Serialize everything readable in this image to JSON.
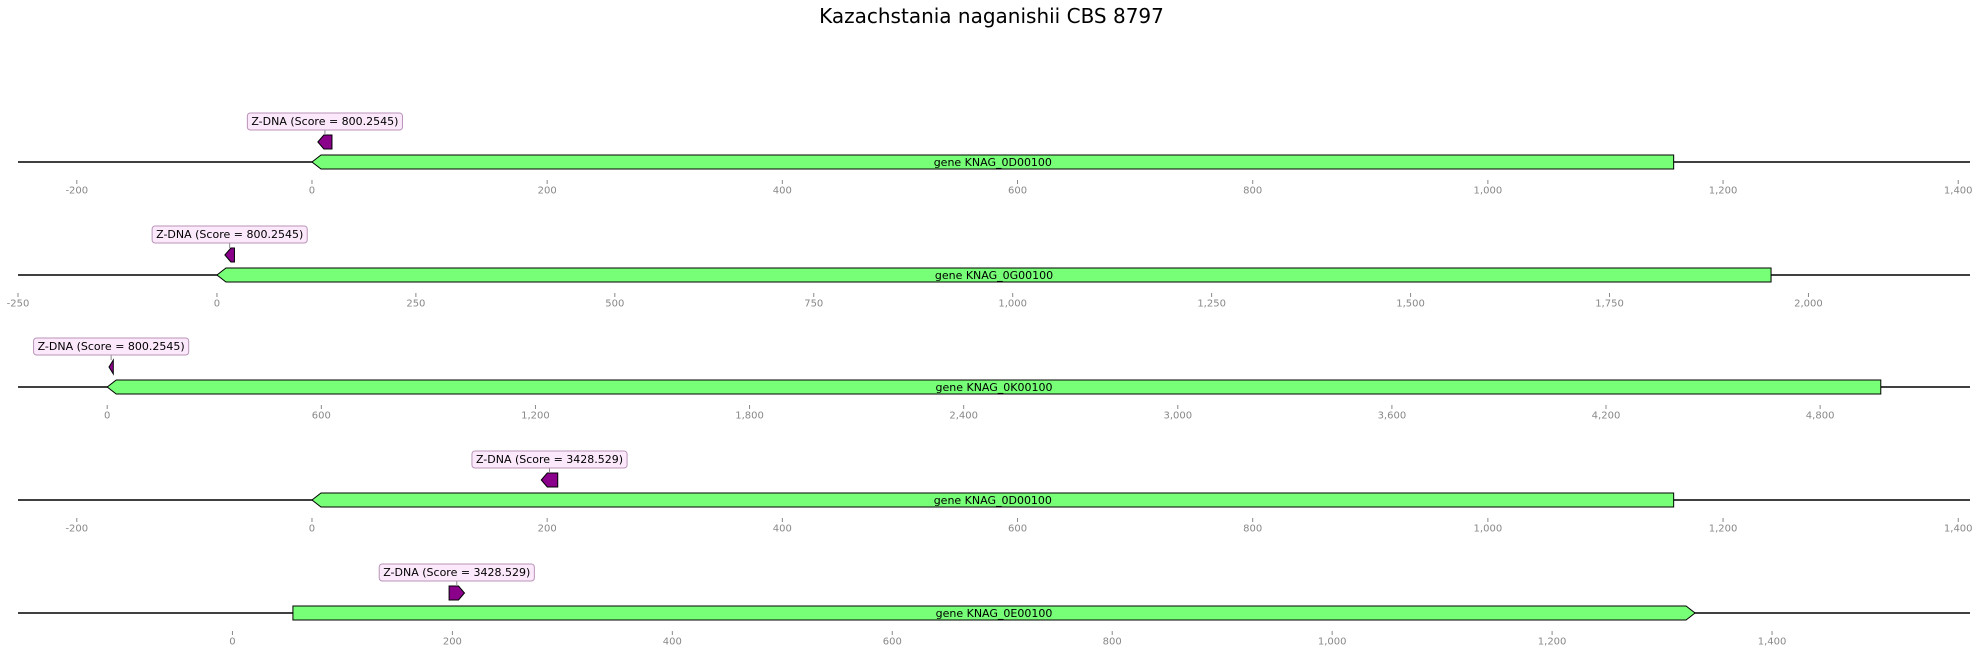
{
  "title": "Kazachstania naganishii CBS 8797",
  "colors": {
    "gene_fill": "#77ff77",
    "gene_stroke": "#000000",
    "zdna_fill": "#8b008b",
    "label_box_fill": "#fbe9fb",
    "label_box_stroke": "#b894b8",
    "tick_color": "#888888"
  },
  "chart_data": [
    {
      "type": "genome-track",
      "xlim": [
        -250,
        1410
      ],
      "ticks": [
        -200,
        0,
        200,
        400,
        600,
        800,
        1000,
        1200,
        1400
      ],
      "tick_labels": [
        "-200",
        "0",
        "200",
        "400",
        "600",
        "800",
        "1,000",
        "1,200",
        "1,400"
      ],
      "gene": {
        "label": "gene KNAG_0D00100",
        "start": 0,
        "end": 1158,
        "strand": -1
      },
      "feature": {
        "label": "Z-DNA (Score = 800.2545)",
        "start": 5,
        "end": 17,
        "strand": -1
      }
    },
    {
      "type": "genome-track",
      "xlim": [
        -250,
        2203
      ],
      "ticks": [
        -250,
        0,
        250,
        500,
        750,
        1000,
        1250,
        1500,
        1750,
        2000
      ],
      "tick_labels": [
        "-250",
        "0",
        "250",
        "500",
        "750",
        "1,000",
        "1,250",
        "1,500",
        "1,750",
        "2,000"
      ],
      "gene": {
        "label": "gene KNAG_0G00100",
        "start": 0,
        "end": 1953,
        "strand": -1
      },
      "feature": {
        "label": "Z-DNA (Score = 800.2545)",
        "start": 10,
        "end": 22,
        "strand": -1
      }
    },
    {
      "type": "genome-track",
      "xlim": [
        -250,
        5220
      ],
      "ticks": [
        0,
        600,
        1200,
        1800,
        2400,
        3000,
        3600,
        4200,
        4800
      ],
      "tick_labels": [
        "0",
        "600",
        "1,200",
        "1,800",
        "2,400",
        "3,000",
        "3,600",
        "4,200",
        "4,800"
      ],
      "gene": {
        "label": "gene KNAG_0K00100",
        "start": 0,
        "end": 4970,
        "strand": -1
      },
      "feature": {
        "label": "Z-DNA (Score = 800.2545)",
        "start": 5,
        "end": 17,
        "strand": -1
      }
    },
    {
      "type": "genome-track",
      "xlim": [
        -250,
        1410
      ],
      "ticks": [
        -200,
        0,
        200,
        400,
        600,
        800,
        1000,
        1200,
        1400
      ],
      "tick_labels": [
        "-200",
        "0",
        "200",
        "400",
        "600",
        "800",
        "1,000",
        "1,200",
        "1,400"
      ],
      "gene": {
        "label": "gene KNAG_0D00100",
        "start": 0,
        "end": 1158,
        "strand": -1
      },
      "feature": {
        "label": "Z-DNA (Score = 3428.529)",
        "start": 195,
        "end": 209,
        "strand": -1
      }
    },
    {
      "type": "genome-track",
      "xlim": [
        -195,
        1580
      ],
      "ticks": [
        0,
        200,
        400,
        600,
        800,
        1000,
        1200,
        1400
      ],
      "tick_labels": [
        "0",
        "200",
        "400",
        "600",
        "800",
        "1,000",
        "1,200",
        "1,400"
      ],
      "gene": {
        "label": "gene KNAG_0E00100",
        "start": 55,
        "end": 1330,
        "strand": 1
      },
      "feature": {
        "label": "Z-DNA (Score = 3428.529)",
        "start": 197,
        "end": 211,
        "strand": 1
      }
    }
  ]
}
